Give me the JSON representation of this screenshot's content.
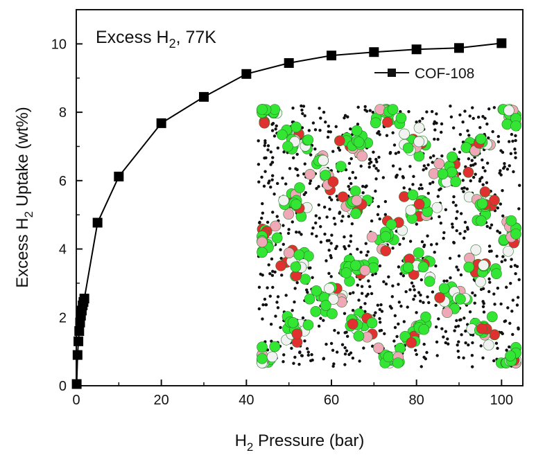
{
  "chart_data": {
    "type": "line",
    "title": "",
    "annotation": {
      "main": "Excess H",
      "sub": "2",
      "tail": ", 77K"
    },
    "xlabel": {
      "pre": "H",
      "sub": "2",
      "post": " Pressure (bar)"
    },
    "ylabel": {
      "pre": "Excess H",
      "sub": "2",
      "post": " Uptake (wt%)"
    },
    "xlim": [
      0,
      105
    ],
    "ylim": [
      0,
      11
    ],
    "xticks": [
      0,
      20,
      40,
      60,
      80,
      100
    ],
    "yticks": [
      0,
      2,
      4,
      6,
      8,
      10
    ],
    "grid": false,
    "legend_position": "top-right",
    "series": [
      {
        "name": "COF-108",
        "color": "#000000",
        "marker": "square",
        "x": [
          0.1,
          0.3,
          0.5,
          0.7,
          0.9,
          1.1,
          1.3,
          1.5,
          1.7,
          1.9,
          5,
          10,
          20,
          30,
          40,
          50,
          60,
          70,
          80,
          90,
          100
        ],
        "y": [
          0.05,
          0.9,
          1.3,
          1.6,
          1.85,
          2.05,
          2.2,
          2.35,
          2.45,
          2.55,
          4.77,
          6.12,
          7.68,
          8.45,
          9.12,
          9.44,
          9.66,
          9.76,
          9.84,
          9.88,
          10.02
        ]
      }
    ]
  },
  "inset": {
    "description_icon": "cof-108-crystal-structure-icon",
    "colors": {
      "carbon": "#33e633",
      "oxygen": "#e03030",
      "hydrogen": "#f2f2f2",
      "boron": "#f0a8b8",
      "h2": "#111111"
    }
  }
}
